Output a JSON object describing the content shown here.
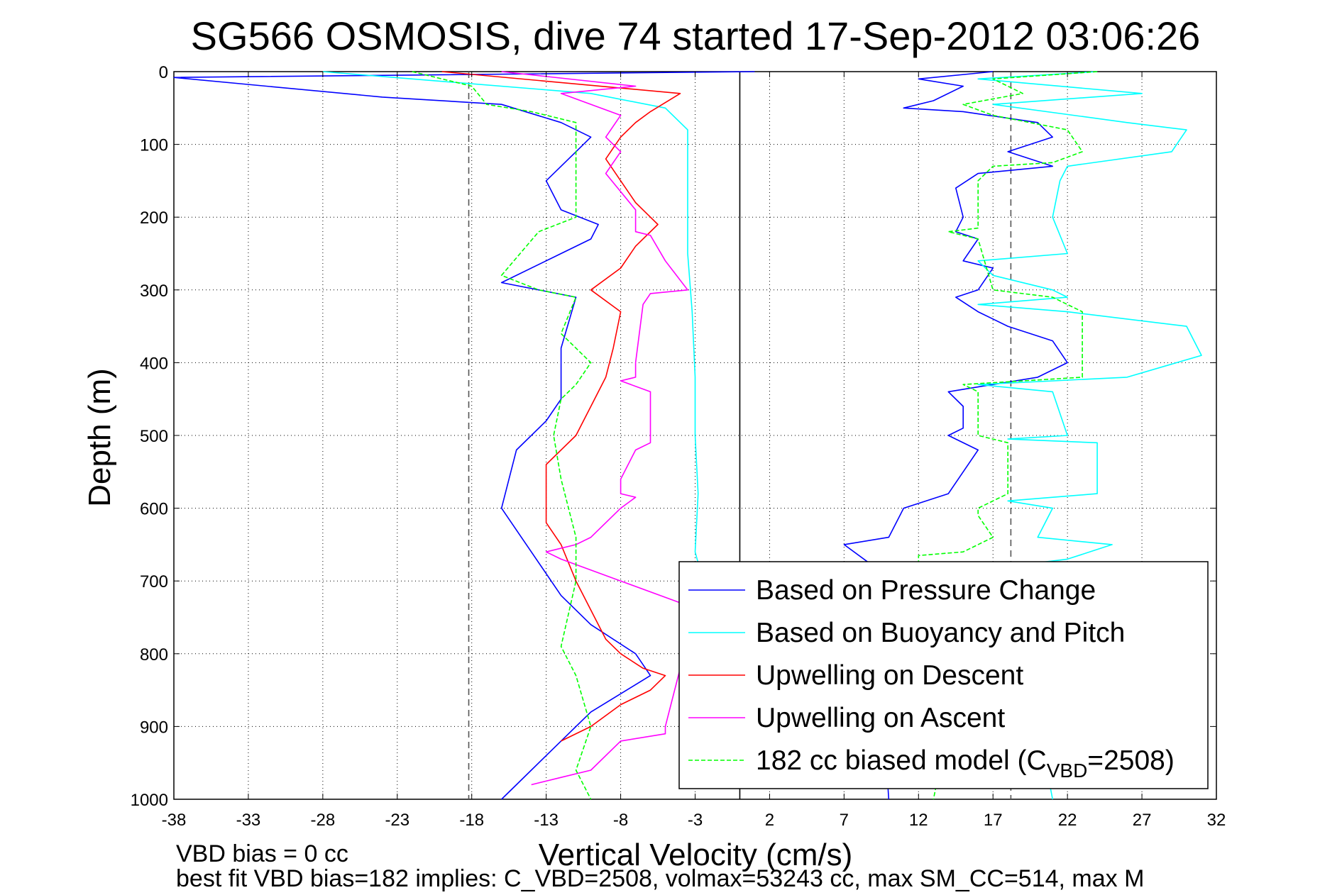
{
  "chart_data": {
    "type": "line",
    "title": "SG566 OSMOSIS, dive 74 started 17-Sep-2012 03:06:26",
    "xlabel": "Vertical Velocity (cm/s)",
    "ylabel": "Depth (m)",
    "xlim": [
      -38,
      32
    ],
    "ylim": [
      0,
      1000
    ],
    "y_reversed": true,
    "grid": true,
    "x_ticks": [
      -38,
      -33,
      -28,
      -23,
      -18,
      -13,
      -8,
      -3,
      2,
      7,
      12,
      17,
      22,
      27,
      32
    ],
    "y_ticks": [
      0,
      100,
      200,
      300,
      400,
      500,
      600,
      700,
      800,
      900,
      1000
    ],
    "x_tick_labels": [
      "-38",
      "-33",
      "-28",
      "-23",
      "-18",
      "-13",
      "-8",
      "-3",
      "2",
      "7",
      "12",
      "17",
      "22",
      "27",
      "32"
    ],
    "y_tick_labels": [
      "0",
      "100",
      "200",
      "300",
      "400",
      "500",
      "600",
      "700",
      "800",
      "900",
      "1000"
    ],
    "reference_lines": [
      {
        "x": -18.2,
        "style": "dashed",
        "color": "#555555"
      },
      {
        "x": 0,
        "style": "solid",
        "color": "#000000"
      },
      {
        "x": 18.2,
        "style": "dashed",
        "color": "#555555"
      }
    ],
    "legend_position": "bottom-right",
    "series": [
      {
        "name": "Based on Pressure Change",
        "color": "#0000ff",
        "style": "solid",
        "segments": [
          {
            "x": [
              1,
              -38,
              -24,
              -16,
              -12,
              -10,
              -11,
              -13,
              -12,
              -9.5,
              -10,
              -12,
              -16,
              -11,
              -12,
              -12,
              -13,
              -15,
              -16,
              -14,
              -12,
              -10,
              -7,
              -6,
              -10,
              -13,
              -15,
              -16
            ],
            "y": [
              0,
              8,
              35,
              45,
              70,
              90,
              110,
              150,
              190,
              210,
              230,
              250,
              290,
              310,
              380,
              450,
              480,
              520,
              600,
              660,
              720,
              760,
              800,
              830,
              880,
              940,
              980,
              1000
            ]
          },
          {
            "x": [
              17,
              12,
              15,
              13,
              11,
              15,
              20,
              21,
              18,
              21,
              16,
              14.5,
              15,
              14.5,
              16,
              15,
              17,
              16,
              14.5,
              16,
              18,
              21,
              22,
              20,
              14,
              15,
              15,
              14,
              16,
              14,
              11,
              10,
              7,
              9,
              10
            ],
            "y": [
              0,
              10,
              20,
              40,
              50,
              55,
              70,
              90,
              110,
              130,
              140,
              160,
              200,
              220,
              230,
              260,
              270,
              300,
              310,
              330,
              350,
              370,
              400,
              420,
              440,
              460,
              490,
              500,
              520,
              580,
              600,
              640,
              650,
              680,
              1000
            ]
          }
        ]
      },
      {
        "name": "Based on Buoyancy and Pitch",
        "color": "#00ffff",
        "style": "solid",
        "segments": [
          {
            "x": [
              -28,
              -10,
              -5,
              -3.5,
              -3.5,
              -3.5,
              -3.5,
              -3.2,
              -3,
              -3,
              -2.8,
              -3,
              -2.6
            ],
            "y": [
              0,
              30,
              50,
              80,
              130,
              200,
              250,
              330,
              420,
              500,
              580,
              660,
              690
            ]
          },
          {
            "x": [
              24,
              16,
              27,
              17,
              26,
              30,
              29,
              22,
              21.5,
              21,
              22,
              16,
              17,
              21,
              22,
              16,
              22,
              30,
              31,
              26,
              16,
              21,
              22,
              18,
              24,
              24,
              18,
              21,
              20,
              25,
              22,
              18,
              21
            ],
            "y": [
              0,
              10,
              30,
              45,
              70,
              80,
              110,
              130,
              150,
              200,
              250,
              260,
              280,
              300,
              310,
              320,
              330,
              350,
              390,
              420,
              430,
              440,
              500,
              505,
              510,
              580,
              590,
              600,
              640,
              650,
              670,
              680,
              1000
            ]
          }
        ]
      },
      {
        "name": "Upwelling on Descent",
        "color": "#ff0000",
        "style": "solid",
        "segments": [
          {
            "x": [
              -20,
              -4,
              -6,
              -7,
              -8,
              -9,
              -8,
              -7,
              -6,
              -5.5,
              -7,
              -8,
              -10,
              -8,
              -8.5,
              -9,
              -10,
              -11,
              -13,
              -13,
              -12,
              -11,
              -10,
              -9,
              -8,
              -6.5,
              -5,
              -6,
              -8,
              -10,
              -12
            ],
            "y": [
              0,
              30,
              55,
              70,
              90,
              120,
              150,
              180,
              200,
              210,
              240,
              270,
              300,
              330,
              380,
              420,
              460,
              500,
              540,
              620,
              650,
              700,
              740,
              780,
              800,
              820,
              830,
              850,
              870,
              900,
              920
            ]
          }
        ]
      },
      {
        "name": "Upwelling on Ascent",
        "color": "#ff00ff",
        "style": "solid",
        "segments": [
          {
            "x": [
              -16,
              -7,
              -12,
              -8,
              -9,
              -8,
              -9,
              -8,
              -7,
              -7,
              -6,
              -5,
              -3.5,
              -6,
              -6.5,
              -7,
              -7,
              -8,
              -6,
              -6,
              -6,
              -6,
              -7,
              -8,
              -8,
              -7,
              -8,
              -10,
              -11,
              -13,
              -12,
              -8,
              -4,
              -3,
              -5,
              -5,
              -8,
              -9,
              -10,
              -12,
              -14
            ],
            "y": [
              0,
              20,
              30,
              60,
              90,
              110,
              140,
              165,
              190,
              220,
              225,
              260,
              300,
              305,
              320,
              400,
              420,
              425,
              440,
              480,
              500,
              510,
              520,
              560,
              580,
              585,
              600,
              640,
              650,
              660,
              670,
              700,
              730,
              740,
              900,
              910,
              920,
              940,
              960,
              970,
              980
            ]
          }
        ]
      },
      {
        "name": "182 cc biased model (C_VBD=2508)",
        "color": "#00ff00",
        "style": "dashed",
        "segments": [
          {
            "x": [
              -22,
              -18,
              -17,
              -14,
              -11,
              -11,
              -11,
              -13.5,
              -16,
              -13.5,
              -11,
              -12,
              -10,
              -11,
              -12,
              -12.5,
              -12,
              -11,
              -11,
              -12,
              -11,
              -10,
              -11,
              -10
            ],
            "y": [
              0,
              20,
              45,
              55,
              70,
              150,
              200,
              220,
              280,
              300,
              310,
              360,
              400,
              430,
              450,
              500,
              560,
              640,
              700,
              790,
              830,
              900,
              960,
              1000
            ]
          },
          {
            "x": [
              24,
              17,
              19,
              15,
              17,
              22,
              23,
              21,
              17,
              16,
              16,
              14,
              16,
              17,
              21,
              23,
              23,
              15,
              16,
              16,
              18,
              18,
              16,
              16,
              17,
              15,
              12,
              12,
              14,
              13
            ],
            "y": [
              0,
              10,
              30,
              45,
              60,
              80,
              110,
              125,
              130,
              150,
              215,
              220,
              230,
              300,
              310,
              330,
              420,
              430,
              440,
              500,
              510,
              580,
              600,
              610,
              640,
              660,
              665,
              700,
              900,
              1000
            ]
          }
        ]
      }
    ],
    "legend": [
      {
        "label": "Based on Pressure Change",
        "color": "#0000ff",
        "style": "solid"
      },
      {
        "label": "Based on Buoyancy and Pitch",
        "color": "#00ffff",
        "style": "solid"
      },
      {
        "label": "Upwelling on Descent",
        "color": "#ff0000",
        "style": "solid"
      },
      {
        "label": "Upwelling on Ascent",
        "color": "#ff00ff",
        "style": "solid"
      },
      {
        "label_main": "182 cc biased model (C",
        "label_sub": "VBD",
        "label_tail": "=2508)",
        "color": "#00ff00",
        "style": "dashed"
      }
    ],
    "annotations": [
      "VBD bias = 0 cc",
      "best fit VBD bias=182 implies: C_VBD=2508, volmax=53243 cc, max SM_CC=514, max M"
    ]
  }
}
